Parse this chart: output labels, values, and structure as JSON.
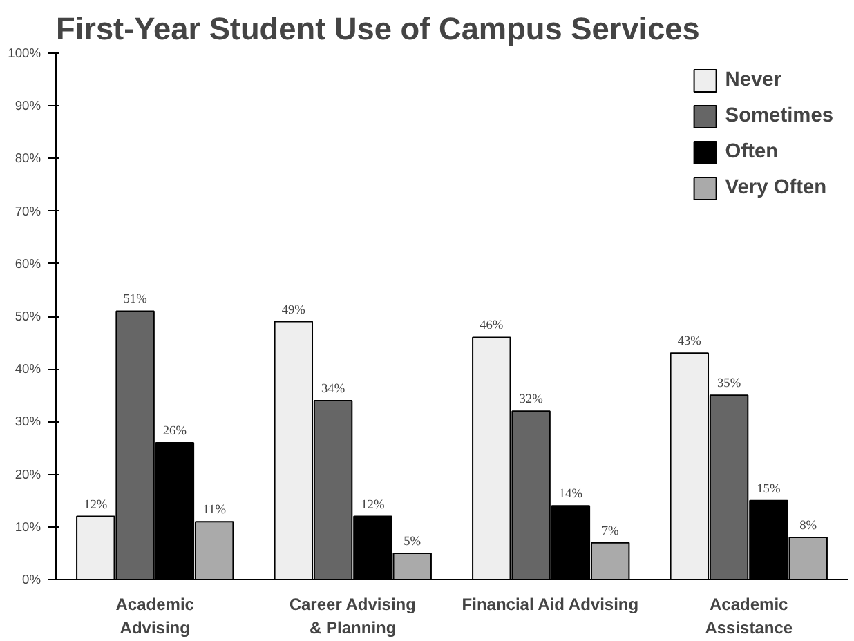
{
  "chart_data": {
    "type": "bar",
    "title": "First-Year Student Use of Campus Services",
    "categories": [
      "Academic\nAdvising",
      "Career Advising\n& Planning",
      "Financial Aid Advising",
      "Academic\nAssistance"
    ],
    "series": [
      {
        "name": "Never",
        "color": "#eeeeee",
        "values": [
          12,
          49,
          46,
          43
        ],
        "value_labels": [
          "12%",
          "49%",
          "46%",
          "43%"
        ]
      },
      {
        "name": "Sometimes",
        "color": "#666666",
        "values": [
          51,
          34,
          32,
          35
        ],
        "value_labels": [
          "51%",
          "34%",
          "32%",
          "35%"
        ]
      },
      {
        "name": "Often",
        "color": "#000000",
        "values": [
          26,
          12,
          14,
          15
        ],
        "value_labels": [
          "26%",
          "12%",
          "14%",
          "15%"
        ]
      },
      {
        "name": "Very Often",
        "color": "#aaaaaa",
        "values": [
          11,
          5,
          7,
          8
        ],
        "value_labels": [
          "11%",
          "5%",
          "7%",
          "8%"
        ]
      }
    ],
    "ylim": [
      0,
      100
    ],
    "yticks": [
      {
        "value": 0,
        "label": "0%"
      },
      {
        "value": 10,
        "label": "10%"
      },
      {
        "value": 20,
        "label": "20%"
      },
      {
        "value": 30,
        "label": "30%"
      },
      {
        "value": 40,
        "label": "40%"
      },
      {
        "value": 50,
        "label": "50%"
      },
      {
        "value": 60,
        "label": "60%"
      },
      {
        "value": 70,
        "label": "70%"
      },
      {
        "value": 80,
        "label": "80%"
      },
      {
        "value": 90,
        "label": "90%"
      },
      {
        "value": 100,
        "label": "100%"
      }
    ],
    "grid": false,
    "legend": "top right"
  }
}
